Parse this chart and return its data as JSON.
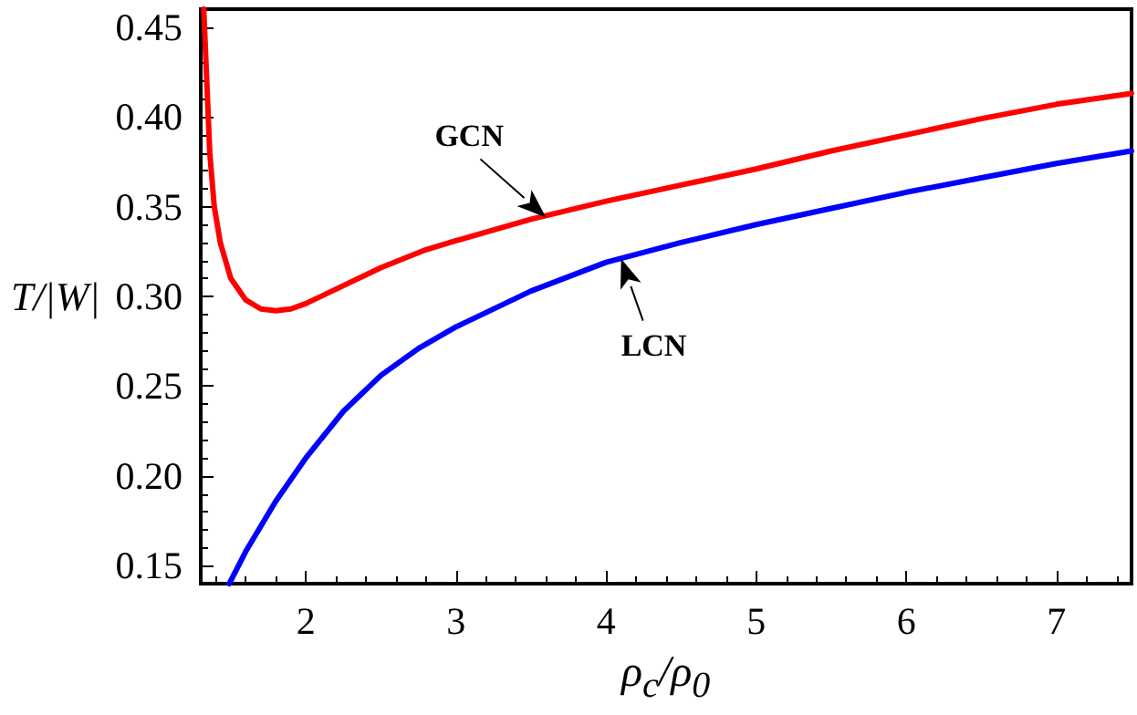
{
  "chart_data": {
    "type": "line",
    "xlabel": "ρ$_{c}$/ρ$_{0}$",
    "ylabel": "T/|W|",
    "xlim": [
      1.3,
      7.5
    ],
    "xticks": [
      2,
      3,
      4,
      5,
      6,
      7
    ],
    "ylim": [
      0.14,
      0.46
    ],
    "yticks": [
      {
        "value": 0.15,
        "label": "0.15"
      },
      {
        "value": 0.2,
        "label": "0.20"
      },
      {
        "value": 0.25,
        "label": "0.25"
      },
      {
        "value": 0.3,
        "label": "0.30"
      },
      {
        "value": 0.35,
        "label": "0.35"
      },
      {
        "value": 0.4,
        "label": "0.40"
      },
      {
        "value": 0.45,
        "label": "0.45"
      }
    ],
    "grid": false,
    "marker": "none",
    "line_style": "solid",
    "series": [
      {
        "color": "#ff0000",
        "x": [
          1.32,
          1.34,
          1.36,
          1.39,
          1.43,
          1.5,
          1.6,
          1.7,
          1.8,
          1.9,
          2.0,
          2.2,
          2.5,
          2.8,
          3.0,
          3.5,
          4.0,
          4.5,
          5.0,
          5.5,
          6.0,
          6.5,
          7.0,
          7.5
        ],
        "values": [
          0.46,
          0.42,
          0.38,
          0.35,
          0.33,
          0.31,
          0.298,
          0.293,
          0.292,
          0.293,
          0.296,
          0.304,
          0.316,
          0.326,
          0.331,
          0.343,
          0.353,
          0.362,
          0.371,
          0.381,
          0.39,
          0.399,
          0.407,
          0.413
        ]
      },
      {
        "color": "#0000ff",
        "x": [
          1.49,
          1.6,
          1.8,
          2.0,
          2.25,
          2.5,
          2.75,
          3.0,
          3.5,
          4.0,
          4.5,
          5.0,
          5.5,
          6.0,
          6.5,
          7.0,
          7.5
        ],
        "values": [
          0.14,
          0.158,
          0.186,
          0.21,
          0.236,
          0.256,
          0.271,
          0.283,
          0.303,
          0.319,
          0.33,
          0.34,
          0.349,
          0.358,
          0.366,
          0.374,
          0.381
        ]
      }
    ],
    "annotations": [
      {
        "text": "GCN",
        "x": 3.6,
        "y": 0.344
      },
      {
        "text": "LCN",
        "x": 4.1,
        "y": 0.321
      }
    ]
  }
}
